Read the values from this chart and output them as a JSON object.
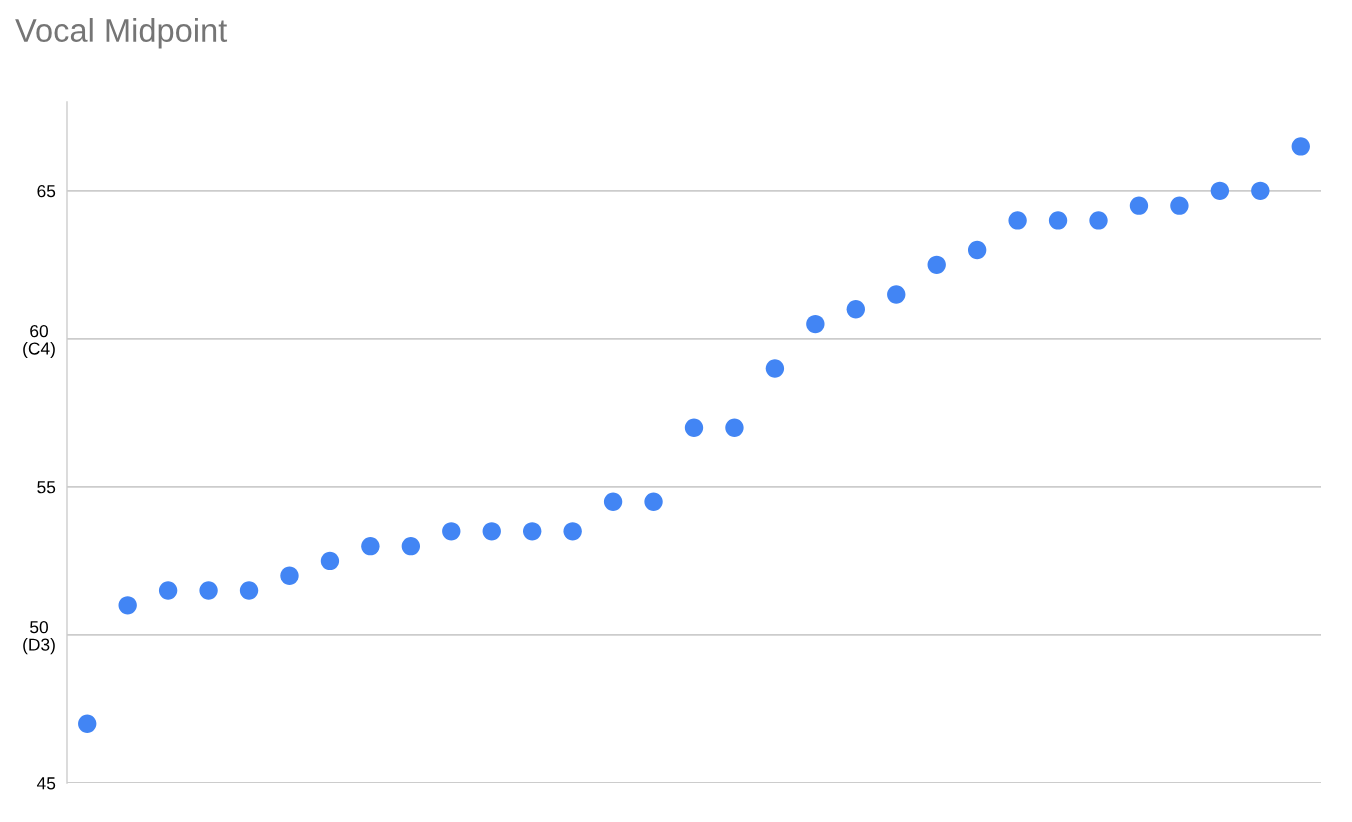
{
  "chart_data": {
    "type": "scatter",
    "title": "Vocal Midpoint",
    "categories": [
      null,
      null,
      null,
      null,
      null,
      null,
      null,
      null,
      null,
      null,
      null,
      null,
      null,
      null,
      null,
      null,
      null,
      null,
      null,
      null,
      null,
      null,
      null,
      null,
      null,
      null,
      null,
      null,
      null,
      null,
      null
    ],
    "series": [
      {
        "color": "#4285f4",
        "values": [
          47,
          51,
          51.5,
          51.5,
          51.5,
          52,
          52.5,
          53,
          53,
          53.5,
          53.5,
          53.5,
          53.5,
          54.5,
          54.5,
          57,
          57,
          59,
          60.5,
          61,
          61.5,
          62.5,
          63,
          64,
          64,
          64,
          64.5,
          64.5,
          65,
          65,
          66.5
        ]
      }
    ],
    "ylim": [
      45,
      68
    ],
    "yticks": [
      45,
      {
        "value": 50,
        "label": "50\n(D3)"
      },
      55,
      {
        "value": 60,
        "label": "60\n(C4)"
      },
      65
    ],
    "grid": "y",
    "marker": "circle"
  }
}
